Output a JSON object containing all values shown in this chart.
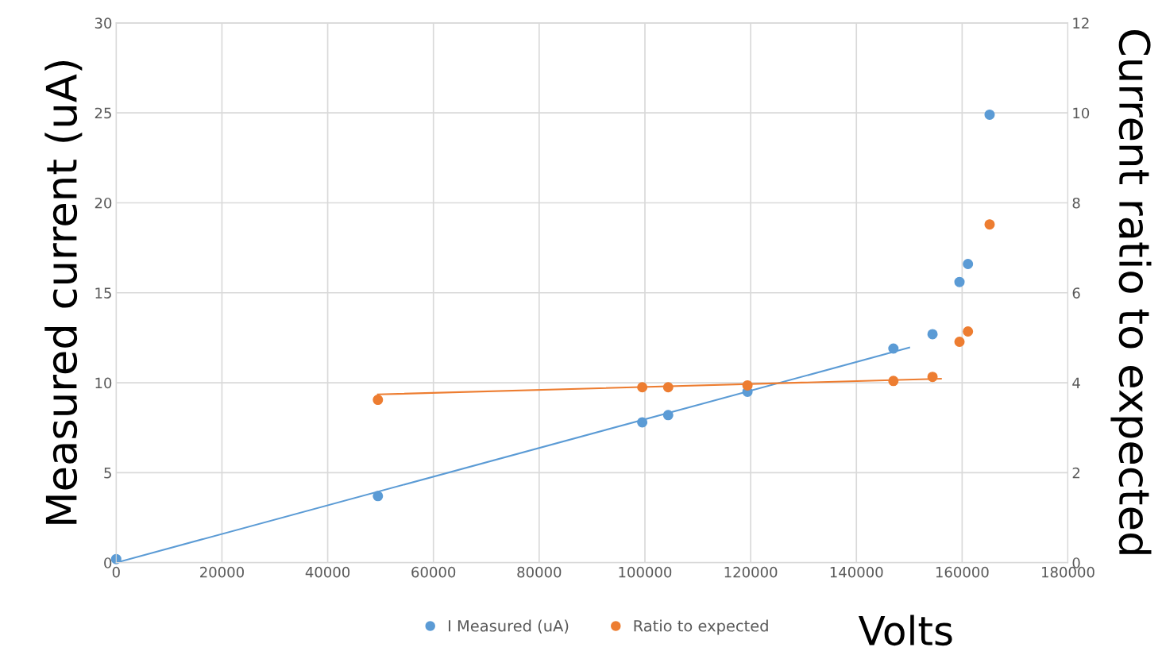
{
  "chart_data": {
    "type": "scatter",
    "xlabel": "Volts",
    "ylabel": "Measured current (uA)",
    "y2label": "Current ratio to expected",
    "xlim": [
      0,
      180000
    ],
    "xticks": [
      0,
      20000,
      40000,
      60000,
      80000,
      100000,
      120000,
      140000,
      160000,
      180000
    ],
    "ylim": [
      0,
      30
    ],
    "yticks": [
      0,
      5,
      10,
      15,
      20,
      25,
      30
    ],
    "y2lim": [
      0,
      12
    ],
    "y2ticks": [
      0,
      2,
      4,
      6,
      8,
      10,
      12
    ],
    "grid": true,
    "legend": "bottom",
    "line_style": "solid",
    "series": [
      {
        "marker": "circle",
        "name": "I Measured (uA)",
        "color": "#5b9bd5",
        "x": [
          0,
          49500,
          99500,
          104400,
          119400,
          147000,
          154400,
          159500,
          161100,
          165200
        ],
        "values": [
          0.2,
          3.7,
          7.8,
          8.2,
          9.5,
          11.9,
          12.7,
          15.6,
          16.6,
          24.9
        ]
      },
      {
        "marker": "circle",
        "name": "Ratio to expected",
        "color": "#ed7d31",
        "axis": "y2",
        "x": [
          49500,
          99500,
          104400,
          119400,
          147000,
          154400,
          159500,
          161100,
          165200
        ],
        "values": [
          3.62,
          3.9,
          3.9,
          3.94,
          4.04,
          4.13,
          4.91,
          5.14,
          7.52
        ]
      },
      {
        "type": "line",
        "marker": "none",
        "color": "#5b9bd5",
        "x": [
          0,
          150000
        ],
        "values": [
          0,
          11.95
        ]
      },
      {
        "type": "line",
        "marker": "none",
        "color": "#ed7d31",
        "axis": "y2",
        "x": [
          49500,
          156000
        ],
        "values": [
          3.74,
          4.09
        ]
      }
    ]
  }
}
